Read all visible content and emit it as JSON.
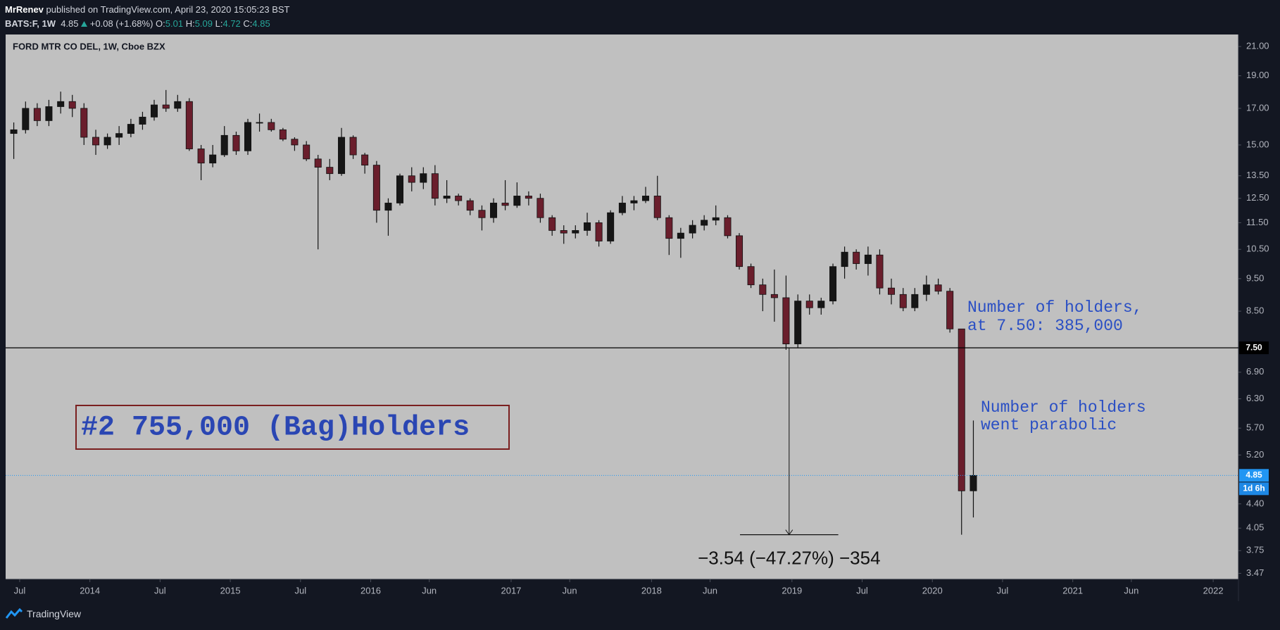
{
  "header": {
    "author": "MrRenev",
    "published": "published on TradingView.com, April 23, 2020 15:05:23 BST",
    "symbol": "BATS:F, 1W",
    "last": "4.85",
    "change": "+0.08 (+1.68%)",
    "ohlc": [
      {
        "label": "O:",
        "value": "5.01"
      },
      {
        "label": "H:",
        "value": "5.09"
      },
      {
        "label": "L:",
        "value": "4.72"
      },
      {
        "label": "C:",
        "value": "4.85"
      }
    ]
  },
  "footer": {
    "brand": "TradingView"
  },
  "chart_data": {
    "type": "candlestick",
    "title": "FORD MTR CO DEL, 1W, Cboe BZX",
    "log_scale": true,
    "up_color": "#161616",
    "down_color": "#6a1e2c",
    "x": [
      2013.458,
      2013.542,
      2013.625,
      2013.708,
      2013.792,
      2013.875,
      2013.958,
      2014.042,
      2014.125,
      2014.208,
      2014.292,
      2014.375,
      2014.458,
      2014.542,
      2014.625,
      2014.708,
      2014.792,
      2014.875,
      2014.958,
      2015.042,
      2015.125,
      2015.208,
      2015.292,
      2015.375,
      2015.458,
      2015.542,
      2015.625,
      2015.708,
      2015.792,
      2015.875,
      2015.958,
      2016.042,
      2016.125,
      2016.208,
      2016.292,
      2016.375,
      2016.458,
      2016.542,
      2016.625,
      2016.708,
      2016.792,
      2016.875,
      2016.958,
      2017.042,
      2017.125,
      2017.208,
      2017.292,
      2017.375,
      2017.458,
      2017.542,
      2017.625,
      2017.708,
      2017.792,
      2017.875,
      2017.958,
      2018.042,
      2018.125,
      2018.208,
      2018.292,
      2018.375,
      2018.458,
      2018.542,
      2018.625,
      2018.708,
      2018.792,
      2018.875,
      2018.958,
      2019.042,
      2019.125,
      2019.208,
      2019.292,
      2019.375,
      2019.458,
      2019.542,
      2019.625,
      2019.708,
      2019.792,
      2019.875,
      2019.958,
      2020.042,
      2020.125,
      2020.208,
      2020.292
    ],
    "open": [
      15.6,
      15.8,
      17.0,
      16.3,
      17.1,
      17.4,
      17.0,
      15.4,
      15.0,
      15.4,
      15.6,
      16.1,
      16.5,
      17.2,
      17.0,
      17.4,
      14.8,
      14.1,
      14.5,
      15.5,
      14.7,
      16.2,
      16.2,
      15.8,
      15.3,
      15.0,
      14.3,
      13.9,
      13.6,
      15.4,
      14.5,
      14.0,
      12.0,
      12.3,
      13.5,
      13.2,
      13.6,
      12.5,
      12.6,
      12.4,
      12.0,
      11.7,
      12.3,
      12.2,
      12.6,
      12.5,
      11.7,
      11.2,
      11.1,
      11.2,
      11.5,
      10.8,
      11.9,
      12.3,
      12.4,
      12.6,
      11.7,
      10.9,
      11.1,
      11.4,
      11.6,
      11.7,
      11.0,
      9.9,
      9.3,
      9.0,
      8.9,
      7.6,
      8.8,
      8.6,
      8.8,
      9.9,
      10.4,
      10.0,
      10.3,
      9.2,
      9.0,
      8.6,
      9.0,
      9.3,
      9.1,
      8.0,
      4.6
    ],
    "high": [
      16.2,
      17.4,
      17.3,
      17.5,
      18.0,
      17.8,
      17.3,
      15.8,
      15.6,
      16.0,
      16.4,
      16.8,
      17.5,
      18.1,
      17.8,
      17.6,
      15.0,
      15.0,
      16.0,
      15.7,
      16.4,
      16.7,
      16.4,
      15.9,
      15.4,
      15.2,
      14.5,
      14.3,
      15.9,
      15.5,
      14.6,
      14.2,
      12.5,
      13.6,
      13.9,
      13.9,
      14.0,
      13.3,
      12.7,
      12.5,
      12.2,
      12.5,
      13.3,
      13.2,
      12.8,
      12.7,
      11.8,
      11.4,
      11.4,
      11.9,
      11.6,
      12.0,
      12.6,
      12.6,
      13.0,
      13.5,
      11.8,
      11.3,
      11.6,
      11.8,
      12.2,
      11.8,
      11.1,
      10.0,
      9.5,
      9.8,
      9.6,
      9.0,
      9.0,
      8.9,
      10.0,
      10.6,
      10.5,
      10.6,
      10.5,
      9.5,
      9.2,
      9.2,
      9.6,
      9.5,
      9.2,
      8.0,
      5.85
    ],
    "low": [
      14.3,
      15.6,
      16.0,
      16.0,
      16.7,
      16.5,
      15.0,
      14.5,
      14.8,
      15.0,
      15.4,
      15.8,
      16.3,
      16.8,
      16.8,
      14.7,
      13.3,
      13.9,
      14.4,
      14.5,
      14.5,
      15.7,
      15.7,
      15.2,
      14.7,
      14.2,
      10.5,
      13.3,
      13.5,
      14.3,
      13.6,
      11.5,
      11.0,
      12.2,
      12.8,
      12.9,
      12.2,
      12.3,
      12.2,
      11.8,
      11.2,
      11.5,
      12.0,
      12.1,
      12.2,
      11.5,
      11.0,
      10.7,
      10.9,
      11.0,
      10.6,
      10.7,
      11.8,
      12.0,
      12.3,
      11.6,
      10.3,
      10.2,
      10.9,
      11.2,
      11.4,
      10.9,
      9.8,
      9.2,
      8.5,
      8.2,
      7.45,
      7.5,
      8.4,
      8.4,
      8.7,
      9.5,
      9.8,
      9.6,
      9.0,
      8.7,
      8.5,
      8.5,
      8.8,
      9.0,
      7.9,
      3.96,
      4.2
    ],
    "close": [
      15.8,
      17.0,
      16.3,
      17.1,
      17.4,
      17.0,
      15.4,
      15.0,
      15.4,
      15.6,
      16.1,
      16.5,
      17.2,
      17.0,
      17.4,
      14.8,
      14.1,
      14.5,
      15.5,
      14.7,
      16.2,
      16.2,
      15.8,
      15.3,
      15.0,
      14.3,
      13.9,
      13.6,
      15.4,
      14.5,
      14.0,
      12.0,
      12.3,
      13.5,
      13.2,
      13.6,
      12.5,
      12.6,
      12.4,
      12.0,
      11.7,
      12.3,
      12.2,
      12.6,
      12.5,
      11.7,
      11.2,
      11.1,
      11.2,
      11.5,
      10.8,
      11.9,
      12.3,
      12.4,
      12.6,
      11.7,
      10.9,
      11.1,
      11.4,
      11.6,
      11.7,
      11.0,
      9.9,
      9.3,
      9.0,
      8.9,
      7.6,
      8.8,
      8.6,
      8.8,
      9.9,
      10.4,
      10.0,
      10.3,
      9.2,
      9.0,
      8.6,
      9.0,
      9.3,
      9.1,
      8.0,
      4.6,
      4.85
    ],
    "xlim": [
      2013.4,
      2022.18
    ],
    "xticks": [
      {
        "value": 2013.5,
        "label": "Jul"
      },
      2014,
      {
        "value": 2014.5,
        "label": "Jul"
      },
      2015,
      {
        "value": 2015.5,
        "label": "Jul"
      },
      2016,
      {
        "value": 2016.417,
        "label": "Jun"
      },
      2017,
      {
        "value": 2017.417,
        "label": "Jun"
      },
      2018,
      {
        "value": 2018.417,
        "label": "Jun"
      },
      2019,
      {
        "value": 2019.5,
        "label": "Jul"
      },
      2020,
      {
        "value": 2020.5,
        "label": "Jul"
      },
      2021,
      {
        "value": 2021.417,
        "label": "Jun"
      },
      2022
    ],
    "ylim": [
      3.4,
      21.88
    ],
    "yticks": [
      {
        "value": 21,
        "label": "21.00"
      },
      {
        "value": 19,
        "label": "19.00"
      },
      {
        "value": 17,
        "label": "17.00"
      },
      {
        "value": 15,
        "label": "15.00"
      },
      {
        "value": 13.5,
        "label": "13.50"
      },
      {
        "value": 12.5,
        "label": "12.50"
      },
      {
        "value": 11.5,
        "label": "11.50"
      },
      {
        "value": 10.5,
        "label": "10.50"
      },
      {
        "value": 9.5,
        "label": "9.50"
      },
      {
        "value": 8.5,
        "label": "8.50"
      },
      {
        "value": 6.9,
        "label": "6.90"
      },
      {
        "value": 6.3,
        "label": "6.30"
      },
      {
        "value": 5.7,
        "label": "5.70"
      },
      {
        "value": 5.2,
        "label": "5.20"
      },
      {
        "value": 4.4,
        "label": "4.40"
      },
      {
        "value": 4.05,
        "label": "4.05"
      },
      {
        "value": 3.75,
        "label": "3.75"
      },
      {
        "value": 3.47,
        "label": "3.47"
      }
    ],
    "horizontal_line": {
      "value": 7.5,
      "label": "7.50",
      "color": "#000000"
    },
    "last_price_line": {
      "value": 4.85,
      "label": "4.85",
      "countdown": "1d 6h",
      "color": "#2196f3"
    },
    "measure": {
      "from": 7.5,
      "to": 3.96,
      "x_from": 2018.63,
      "x_to": 2019.33,
      "label": "−3.54 (−47.27%) −354"
    },
    "annotations": {
      "box": "#2 755,000 (Bag)Holders",
      "note1": [
        "Number of holders,",
        "at 7.50: 385,000"
      ],
      "note2": [
        "Number of holders",
        "went parabolic"
      ]
    }
  }
}
